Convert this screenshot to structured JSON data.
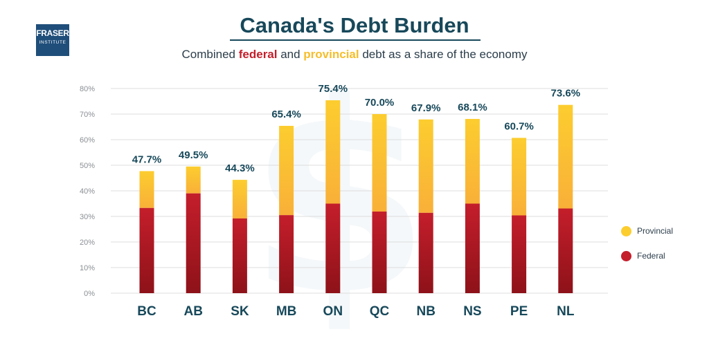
{
  "logo": {
    "line1": "FRASER",
    "line2": "INSTITUTE"
  },
  "title_parts": [
    "Canada's Debt Burden"
  ],
  "subtitle_parts": {
    "pre": "Combined ",
    "federal": "federal",
    "mid": " and ",
    "provincial": "provincial",
    "post": " debt as a share of the economy"
  },
  "colors": {
    "federal": "#c41e2b",
    "federal_dark": "#8e1219",
    "provincial": "#fccd2f",
    "provincial_dark": "#f9b038",
    "title": "#17485a",
    "text": "#2b3d4a",
    "grid": "#dcdcdc",
    "tick": "#8a8f94",
    "category": "#17485a"
  },
  "chart_data": {
    "type": "bar",
    "stacked": true,
    "title": "Canada's Debt Burden",
    "subtitle": "Combined federal and provincial debt as a share of the economy",
    "xlabel": "",
    "ylabel": "",
    "ylim": [
      0,
      80
    ],
    "yticks": [
      0,
      10,
      20,
      30,
      40,
      50,
      60,
      70,
      80
    ],
    "ytick_labels": [
      "0%",
      "10%",
      "20%",
      "30%",
      "40%",
      "50%",
      "60%",
      "70%",
      "80%"
    ],
    "grid": true,
    "categories": [
      "BC",
      "AB",
      "SK",
      "MB",
      "ON",
      "QC",
      "NB",
      "NS",
      "PE",
      "NL"
    ],
    "series": [
      {
        "name": "Federal",
        "values": [
          33.3,
          39.0,
          29.2,
          30.5,
          35.0,
          31.9,
          31.4,
          35.0,
          30.4,
          33.1
        ]
      },
      {
        "name": "Provincial",
        "values": [
          14.4,
          10.5,
          15.1,
          34.9,
          40.4,
          38.1,
          36.5,
          33.1,
          30.3,
          40.5
        ]
      }
    ],
    "totals": [
      47.7,
      49.5,
      44.3,
      65.4,
      75.4,
      70.0,
      67.9,
      68.1,
      60.7,
      73.6
    ],
    "total_labels": [
      "47.7%",
      "49.5%",
      "44.3%",
      "65.4%",
      "75.4%",
      "70.0%",
      "67.9%",
      "68.1%",
      "60.7%",
      "73.6%"
    ],
    "legend": [
      "Provincial",
      "Federal"
    ],
    "legend_position": "right"
  }
}
